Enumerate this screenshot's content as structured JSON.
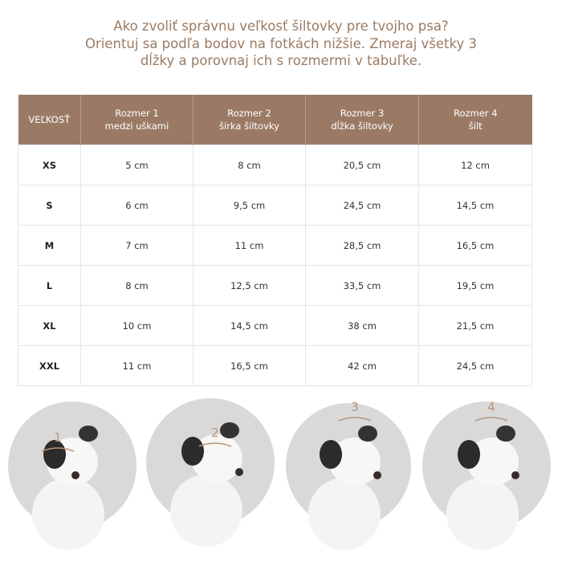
{
  "header": {
    "lines": [
      "Ako zvoliť správnu veľkosť šiltovky pre tvojho psa?",
      "Orientuj sa podľa bodov na fotkách nižšie. Zmeraj všetky 3",
      "dĺžky a porovnaj ich s rozmermi v tabuľke."
    ]
  },
  "table": {
    "columns": [
      {
        "title": "VEĽKOSŤ"
      },
      {
        "title": "Rozmer 1",
        "subtitle": "medzi uškami"
      },
      {
        "title": "Rozmer 2",
        "subtitle": "šírka šiltovky"
      },
      {
        "title": "Rozmer 3",
        "subtitle": "dĺžka šiltovky"
      },
      {
        "title": "Rozmer 4",
        "subtitle": "šilt"
      }
    ],
    "rows": [
      [
        "XS",
        "5 cm",
        "8 cm",
        "20,5 cm",
        "12 cm"
      ],
      [
        "S",
        "6 cm",
        "9,5 cm",
        "24,5 cm",
        "14,5 cm"
      ],
      [
        "M",
        "7 cm",
        "11 cm",
        "28,5 cm",
        "16,5 cm"
      ],
      [
        "L",
        "8 cm",
        "12,5 cm",
        "33,5 cm",
        "19,5 cm"
      ],
      [
        "XL",
        "10 cm",
        "14,5 cm",
        "38 cm",
        "21,5 cm"
      ],
      [
        "XXL",
        "11 cm",
        "16,5 cm",
        "42 cm",
        "24,5 cm"
      ]
    ]
  },
  "photos": [
    {
      "marker": "1"
    },
    {
      "marker": "2"
    },
    {
      "marker": "3"
    },
    {
      "marker": "4"
    }
  ]
}
